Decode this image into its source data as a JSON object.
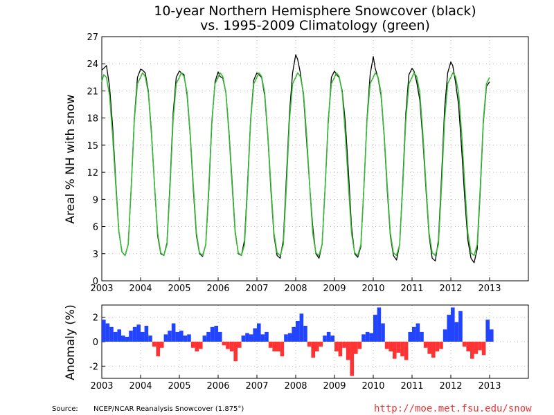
{
  "chart_data": [
    {
      "type": "line",
      "title": "10-year Northern Hemisphere Snowcover (black)",
      "subtitle": "vs. 1995-2009 Climatology (green)",
      "ylabel": "Areal % NH with snow",
      "xlabel": "",
      "xlim": [
        2003,
        2014
      ],
      "ylim": [
        0,
        27
      ],
      "x_ticks": [
        "2003",
        "2004",
        "2005",
        "2006",
        "2007",
        "2008",
        "2009",
        "2010",
        "2011",
        "2012",
        "2013"
      ],
      "y_ticks": [
        "0",
        "3",
        "6",
        "9",
        "12",
        "15",
        "18",
        "21",
        "24",
        "27"
      ],
      "grid": true,
      "series": [
        {
          "color": "#000000",
          "x": [
            2003.0,
            2003.05,
            2003.12,
            2003.2,
            2003.28,
            2003.36,
            2003.44,
            2003.52,
            2003.6,
            2003.68,
            2003.76,
            2003.84,
            2003.92,
            2004.0,
            2004.05,
            2004.12,
            2004.2,
            2004.28,
            2004.36,
            2004.44,
            2004.52,
            2004.6,
            2004.68,
            2004.76,
            2004.84,
            2004.92,
            2005.0,
            2005.05,
            2005.12,
            2005.2,
            2005.28,
            2005.36,
            2005.44,
            2005.52,
            2005.6,
            2005.68,
            2005.76,
            2005.84,
            2005.92,
            2006.0,
            2006.05,
            2006.12,
            2006.2,
            2006.28,
            2006.36,
            2006.44,
            2006.52,
            2006.6,
            2006.68,
            2006.76,
            2006.84,
            2006.92,
            2007.0,
            2007.05,
            2007.12,
            2007.2,
            2007.28,
            2007.36,
            2007.44,
            2007.52,
            2007.6,
            2007.68,
            2007.76,
            2007.84,
            2007.92,
            2008.0,
            2008.05,
            2008.12,
            2008.2,
            2008.28,
            2008.36,
            2008.44,
            2008.52,
            2008.6,
            2008.68,
            2008.76,
            2008.84,
            2008.92,
            2009.0,
            2009.05,
            2009.12,
            2009.2,
            2009.28,
            2009.36,
            2009.44,
            2009.52,
            2009.6,
            2009.68,
            2009.76,
            2009.84,
            2009.92,
            2010.0,
            2010.05,
            2010.12,
            2010.2,
            2010.28,
            2010.36,
            2010.44,
            2010.52,
            2010.6,
            2010.68,
            2010.76,
            2010.84,
            2010.92,
            2011.0,
            2011.05,
            2011.12,
            2011.2,
            2011.28,
            2011.36,
            2011.44,
            2011.52,
            2011.6,
            2011.68,
            2011.76,
            2011.84,
            2011.92,
            2012.0,
            2012.05,
            2012.12,
            2012.2,
            2012.28,
            2012.36,
            2012.44,
            2012.52,
            2012.6,
            2012.68,
            2012.76,
            2012.84,
            2012.92,
            2013.0
          ],
          "values": [
            23.3,
            23.5,
            23.8,
            21.5,
            17.0,
            11.0,
            5.5,
            3.2,
            2.8,
            4.0,
            10.5,
            18.0,
            22.5,
            23.4,
            23.3,
            23.0,
            21.0,
            16.5,
            10.5,
            5.0,
            3.0,
            2.8,
            4.2,
            11.0,
            18.5,
            22.5,
            23.2,
            23.0,
            22.8,
            20.5,
            16.0,
            10.0,
            5.0,
            3.0,
            2.7,
            4.0,
            10.0,
            17.5,
            22.0,
            23.1,
            22.6,
            22.4,
            20.8,
            16.5,
            11.0,
            5.5,
            3.0,
            2.8,
            4.5,
            11.0,
            18.0,
            22.2,
            23.0,
            22.8,
            22.5,
            20.5,
            16.0,
            10.0,
            5.0,
            2.8,
            2.5,
            4.5,
            11.5,
            18.5,
            23.0,
            25.0,
            24.5,
            23.0,
            20.5,
            15.5,
            10.5,
            6.0,
            3.0,
            2.5,
            4.0,
            10.5,
            17.5,
            22.5,
            23.2,
            22.8,
            22.5,
            21.0,
            17.5,
            12.0,
            6.0,
            3.0,
            2.6,
            3.8,
            10.5,
            18.0,
            22.8,
            24.8,
            23.5,
            22.5,
            20.5,
            16.0,
            10.0,
            5.0,
            2.8,
            2.3,
            4.0,
            11.0,
            18.5,
            22.8,
            23.5,
            23.2,
            22.0,
            20.0,
            15.5,
            10.0,
            5.0,
            2.5,
            2.2,
            4.5,
            11.5,
            19.0,
            23.0,
            24.2,
            23.8,
            22.0,
            19.5,
            14.5,
            9.0,
            4.5,
            2.5,
            2.0,
            3.5,
            10.0,
            17.5,
            21.5,
            22.0
          ]
        },
        {
          "color": "#33bb33",
          "x": [
            2003.0,
            2003.05,
            2003.12,
            2003.2,
            2003.28,
            2003.36,
            2003.44,
            2003.52,
            2003.6,
            2003.68,
            2003.76,
            2003.84,
            2003.92,
            2004.0,
            2004.05,
            2004.12,
            2004.2,
            2004.28,
            2004.36,
            2004.44,
            2004.52,
            2004.6,
            2004.68,
            2004.76,
            2004.84,
            2004.92,
            2005.0,
            2005.05,
            2005.12,
            2005.2,
            2005.28,
            2005.36,
            2005.44,
            2005.52,
            2005.6,
            2005.68,
            2005.76,
            2005.84,
            2005.92,
            2006.0,
            2006.05,
            2006.12,
            2006.2,
            2006.28,
            2006.36,
            2006.44,
            2006.52,
            2006.6,
            2006.68,
            2006.76,
            2006.84,
            2006.92,
            2007.0,
            2007.05,
            2007.12,
            2007.2,
            2007.28,
            2007.36,
            2007.44,
            2007.52,
            2007.6,
            2007.68,
            2007.76,
            2007.84,
            2007.92,
            2008.0,
            2008.05,
            2008.12,
            2008.2,
            2008.28,
            2008.36,
            2008.44,
            2008.52,
            2008.6,
            2008.68,
            2008.76,
            2008.84,
            2008.92,
            2009.0,
            2009.05,
            2009.12,
            2009.2,
            2009.28,
            2009.36,
            2009.44,
            2009.52,
            2009.6,
            2009.68,
            2009.76,
            2009.84,
            2009.92,
            2010.0,
            2010.05,
            2010.12,
            2010.2,
            2010.28,
            2010.36,
            2010.44,
            2010.52,
            2010.6,
            2010.68,
            2010.76,
            2010.84,
            2010.92,
            2011.0,
            2011.05,
            2011.12,
            2011.2,
            2011.28,
            2011.36,
            2011.44,
            2011.52,
            2011.6,
            2011.68,
            2011.76,
            2011.84,
            2011.92,
            2012.0,
            2012.05,
            2012.12,
            2012.2,
            2012.28,
            2012.36,
            2012.44,
            2012.52,
            2012.6,
            2012.68,
            2012.76,
            2012.84,
            2012.92,
            2013.0
          ],
          "values": [
            22.0,
            22.8,
            22.5,
            20.5,
            16.0,
            10.5,
            5.5,
            3.2,
            2.8,
            4.0,
            10.5,
            17.8,
            21.8,
            22.5,
            23.0,
            22.6,
            20.8,
            16.2,
            10.5,
            5.3,
            3.1,
            2.8,
            4.0,
            10.5,
            17.8,
            21.8,
            22.5,
            23.0,
            22.6,
            20.8,
            16.2,
            10.5,
            5.3,
            3.1,
            2.8,
            4.0,
            10.5,
            17.8,
            21.8,
            22.5,
            23.0,
            22.6,
            20.8,
            16.2,
            10.5,
            5.3,
            3.1,
            2.8,
            4.0,
            10.5,
            17.8,
            21.8,
            22.5,
            23.0,
            22.6,
            20.8,
            16.2,
            10.5,
            5.3,
            3.1,
            2.8,
            4.0,
            10.5,
            17.8,
            21.8,
            22.5,
            23.0,
            22.6,
            20.8,
            16.2,
            10.5,
            5.3,
            3.1,
            2.8,
            4.0,
            10.5,
            17.8,
            21.8,
            22.5,
            23.0,
            22.6,
            20.8,
            16.2,
            10.5,
            5.3,
            3.1,
            2.8,
            4.0,
            10.5,
            17.8,
            21.8,
            22.5,
            23.0,
            22.6,
            20.8,
            16.2,
            10.5,
            5.3,
            3.1,
            2.8,
            4.0,
            10.5,
            17.8,
            21.8,
            22.5,
            23.0,
            22.6,
            20.8,
            16.2,
            10.5,
            5.3,
            3.1,
            2.8,
            4.0,
            10.5,
            17.8,
            21.8,
            22.5,
            23.0,
            22.6,
            20.8,
            16.2,
            10.5,
            5.3,
            3.1,
            2.8,
            4.0,
            10.5,
            17.8,
            21.8,
            22.5
          ]
        }
      ]
    },
    {
      "type": "bar",
      "ylabel": "Anomaly (%)",
      "xlim": [
        2003,
        2014
      ],
      "ylim": [
        -3,
        3
      ],
      "x_ticks": [
        "2003",
        "2004",
        "2005",
        "2006",
        "2007",
        "2008",
        "2009",
        "2010",
        "2011",
        "2012",
        "2013"
      ],
      "y_ticks": [
        "-2",
        "0",
        "2"
      ],
      "grid": true,
      "positive_color": "#2244ff",
      "negative_color": "#ff3333",
      "x": [
        2003.0,
        2003.1,
        2003.2,
        2003.3,
        2003.4,
        2003.5,
        2003.6,
        2003.7,
        2003.8,
        2003.9,
        2004.0,
        2004.1,
        2004.2,
        2004.3,
        2004.4,
        2004.5,
        2004.6,
        2004.7,
        2004.8,
        2004.9,
        2005.0,
        2005.1,
        2005.2,
        2005.3,
        2005.4,
        2005.5,
        2005.6,
        2005.7,
        2005.8,
        2005.9,
        2006.0,
        2006.1,
        2006.2,
        2006.3,
        2006.4,
        2006.5,
        2006.6,
        2006.7,
        2006.8,
        2006.9,
        2007.0,
        2007.1,
        2007.2,
        2007.3,
        2007.4,
        2007.5,
        2007.6,
        2007.7,
        2007.8,
        2007.9,
        2008.0,
        2008.1,
        2008.2,
        2008.3,
        2008.4,
        2008.5,
        2008.6,
        2008.7,
        2008.8,
        2008.9,
        2009.0,
        2009.1,
        2009.2,
        2009.3,
        2009.4,
        2009.5,
        2009.6,
        2009.7,
        2009.8,
        2009.9,
        2010.0,
        2010.1,
        2010.2,
        2010.3,
        2010.4,
        2010.5,
        2010.6,
        2010.7,
        2010.8,
        2010.9,
        2011.0,
        2011.1,
        2011.2,
        2011.3,
        2011.4,
        2011.5,
        2011.6,
        2011.7,
        2011.8,
        2011.9,
        2012.0,
        2012.1,
        2012.2,
        2012.3,
        2012.4,
        2012.5,
        2012.6,
        2012.7,
        2012.8,
        2012.9,
        2013.0
      ],
      "values": [
        1.8,
        1.5,
        1.2,
        0.8,
        1.0,
        0.5,
        0.4,
        0.9,
        1.2,
        1.4,
        0.8,
        1.3,
        0.5,
        -0.4,
        -1.2,
        -0.5,
        0.6,
        0.9,
        1.5,
        0.8,
        0.9,
        0.5,
        0.6,
        -0.5,
        -0.8,
        -0.6,
        0.5,
        0.8,
        1.2,
        1.3,
        0.8,
        -0.3,
        -0.6,
        -0.8,
        -1.6,
        -0.5,
        0.5,
        0.7,
        0.6,
        1.1,
        1.5,
        0.6,
        0.8,
        -0.5,
        -0.8,
        -0.8,
        -1.2,
        0.6,
        0.7,
        1.2,
        1.7,
        2.3,
        1.3,
        -0.4,
        -1.3,
        -0.8,
        -0.4,
        0.5,
        0.8,
        0.5,
        -0.8,
        -1.2,
        -0.5,
        -1.5,
        -2.8,
        -1.0,
        -0.6,
        0.6,
        0.8,
        0.7,
        2.2,
        2.8,
        1.5,
        -0.6,
        -0.8,
        -1.4,
        -0.9,
        -1.2,
        -1.5,
        0.8,
        1.2,
        1.5,
        0.8,
        -0.5,
        -1.0,
        -1.3,
        -0.8,
        -0.6,
        1.0,
        2.2,
        2.8,
        1.6,
        2.5,
        -0.4,
        -0.8,
        -1.4,
        -1.0,
        -0.7,
        -1.1,
        1.8,
        1.0
      ]
    }
  ],
  "source": {
    "label": "Source:",
    "text": "NCEP/NCAR Reanalysis Snowcover (1.875°)",
    "url": "http://moe.met.fsu.edu/snow"
  }
}
